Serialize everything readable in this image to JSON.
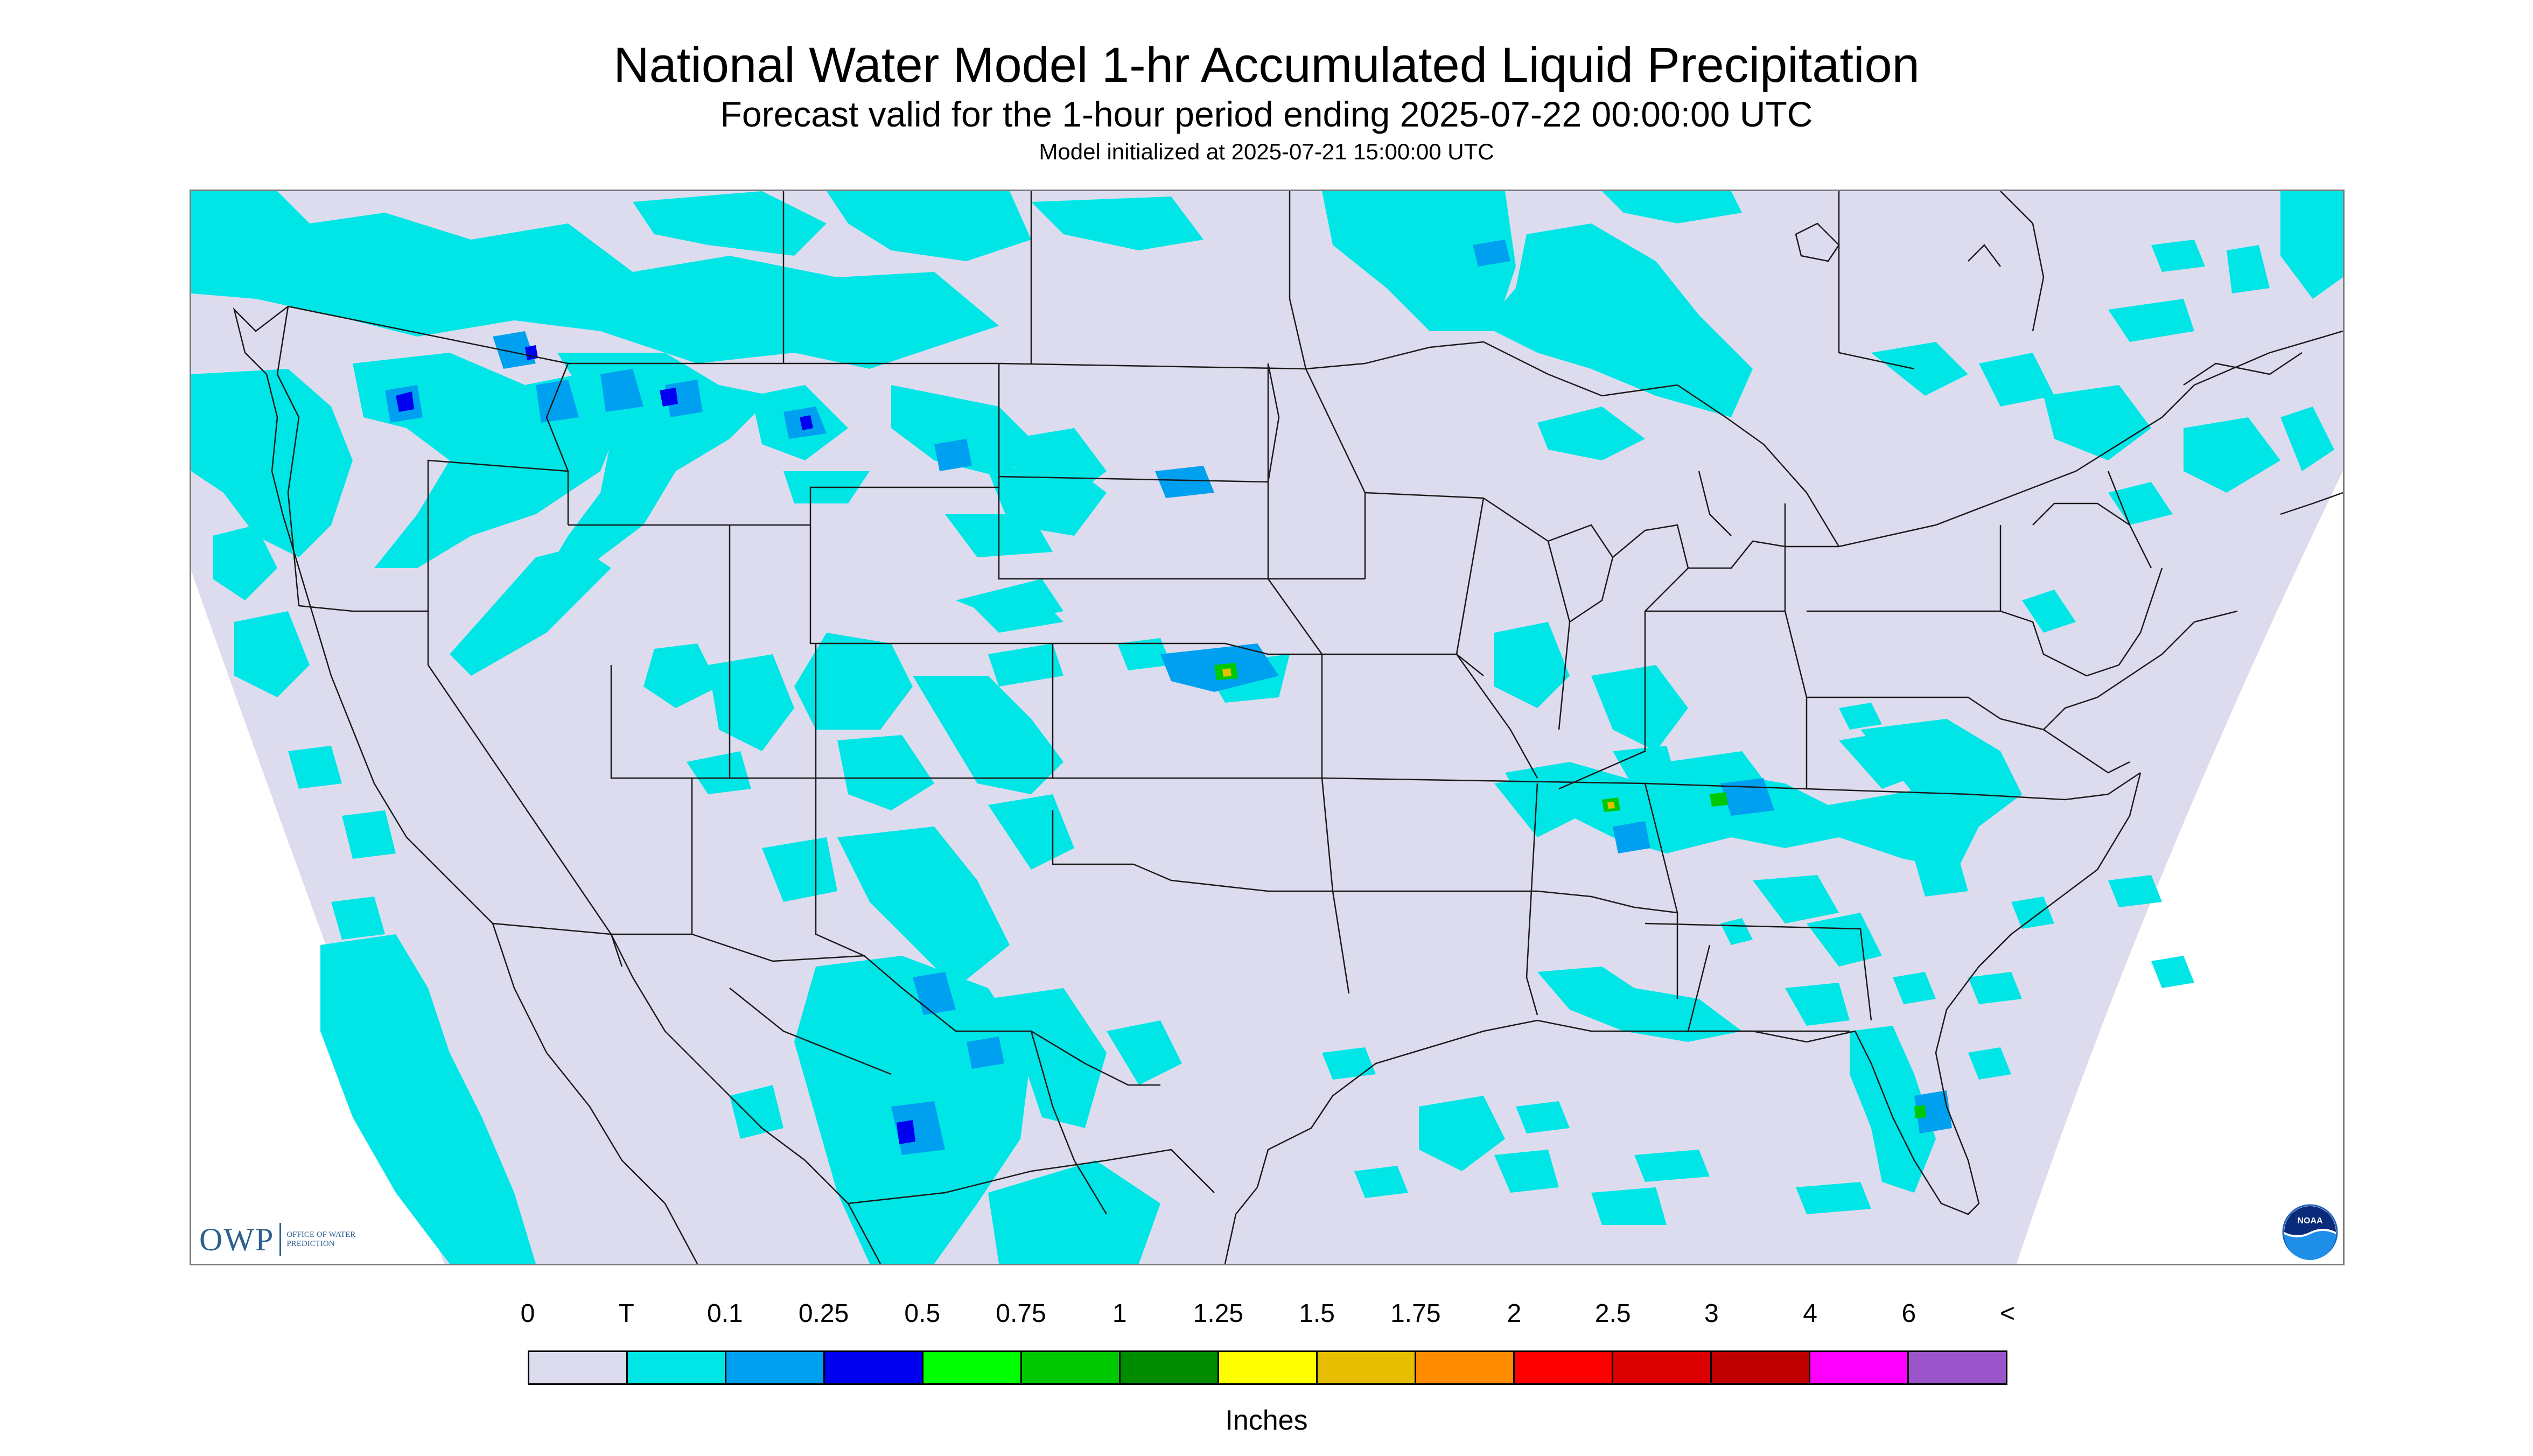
{
  "header": {
    "title": "National Water Model 1-hr Accumulated Liquid Precipitation",
    "subtitle": "Forecast valid for the 1-hour period ending 2025-07-22 00:00:00 UTC",
    "init_line": "Model initialized at 2025-07-21 15:00:00 UTC"
  },
  "map": {
    "background_color": "#dcdcee",
    "outside_color": "#ffffff",
    "boundary_color": "#1a1a1a"
  },
  "branding": {
    "owp_letters": "OWP",
    "owp_name": "OFFICE OF WATER PREDICTION",
    "noaa_text": "NOAA"
  },
  "legend": {
    "labels": [
      "0",
      "T",
      "0.1",
      "0.25",
      "0.5",
      "0.75",
      "1",
      "1.25",
      "1.5",
      "1.75",
      "2",
      "2.5",
      "3",
      "4",
      "6",
      "<"
    ],
    "colors": [
      "#dcdcee",
      "#00e6e6",
      "#00a0f0",
      "#0000f0",
      "#00ff00",
      "#00c800",
      "#008c00",
      "#ffff00",
      "#e6c000",
      "#ff8c00",
      "#ff0000",
      "#dc0000",
      "#c00000",
      "#ff00ff",
      "#9955c9"
    ],
    "units": "Inches"
  }
}
